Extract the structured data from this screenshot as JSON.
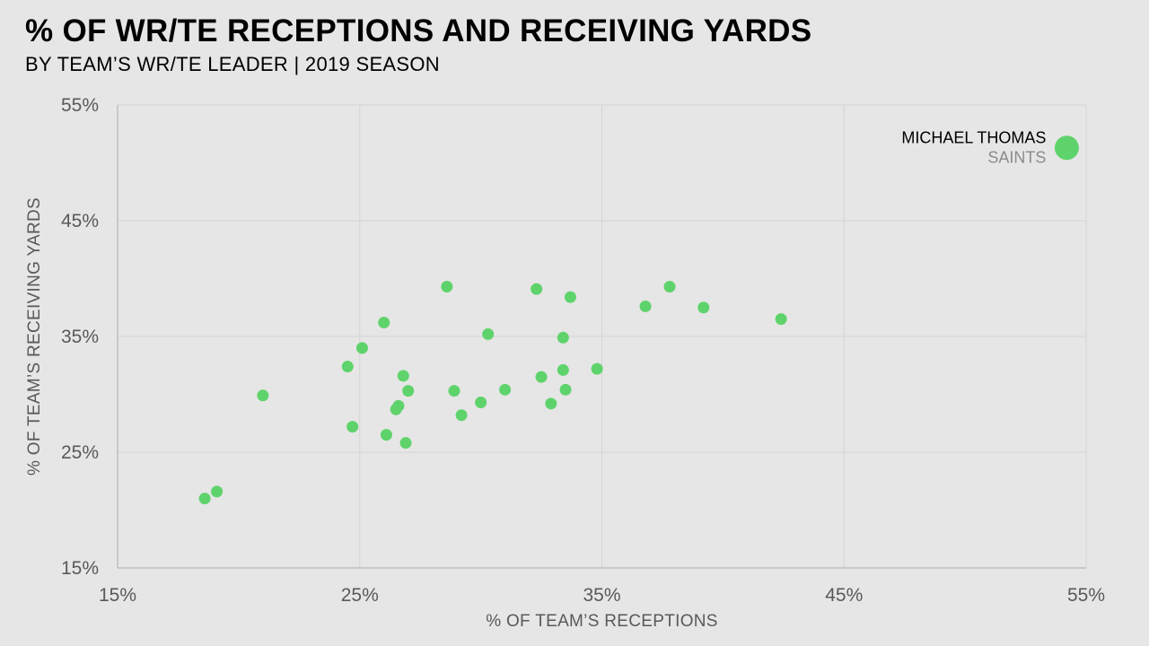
{
  "title": "% OF WR/TE RECEPTIONS AND RECEIVING YARDS",
  "subtitle": "BY TEAM’S WR/TE LEADER | 2019 SEASON",
  "colors": {
    "point": "#5fd36b",
    "grid": "#d4d4d4",
    "axis": "#bfbfbf",
    "background": "#e6e6e6"
  },
  "chart_data": {
    "type": "scatter",
    "xlabel": "% OF TEAM’S RECEPTIONS",
    "ylabel": "% OF TEAM’S RECEIVING YARDS",
    "xlim": [
      15,
      55
    ],
    "ylim": [
      15,
      55
    ],
    "x_ticks": [
      15,
      25,
      35,
      45,
      55
    ],
    "y_ticks": [
      15,
      25,
      35,
      45,
      55
    ],
    "x_tick_labels": [
      "15%",
      "25%",
      "35%",
      "45%",
      "55%"
    ],
    "y_tick_labels": [
      "15%",
      "25%",
      "35%",
      "45%",
      "55%"
    ],
    "grid": true,
    "points": [
      {
        "x": 18.6,
        "y": 21.0
      },
      {
        "x": 19.1,
        "y": 21.6
      },
      {
        "x": 21.0,
        "y": 29.9
      },
      {
        "x": 24.5,
        "y": 32.4
      },
      {
        "x": 24.7,
        "y": 27.2
      },
      {
        "x": 25.1,
        "y": 34.0
      },
      {
        "x": 26.0,
        "y": 36.2
      },
      {
        "x": 26.1,
        "y": 26.5
      },
      {
        "x": 26.5,
        "y": 28.7
      },
      {
        "x": 26.6,
        "y": 29.0
      },
      {
        "x": 26.8,
        "y": 31.6
      },
      {
        "x": 27.0,
        "y": 30.3
      },
      {
        "x": 26.9,
        "y": 25.8
      },
      {
        "x": 28.6,
        "y": 39.3
      },
      {
        "x": 28.9,
        "y": 30.3
      },
      {
        "x": 29.2,
        "y": 28.2
      },
      {
        "x": 30.0,
        "y": 29.3
      },
      {
        "x": 30.3,
        "y": 35.2
      },
      {
        "x": 31.0,
        "y": 30.4
      },
      {
        "x": 32.3,
        "y": 39.1
      },
      {
        "x": 32.5,
        "y": 31.5
      },
      {
        "x": 32.9,
        "y": 29.2
      },
      {
        "x": 33.4,
        "y": 34.9
      },
      {
        "x": 33.4,
        "y": 32.1
      },
      {
        "x": 33.5,
        "y": 30.4
      },
      {
        "x": 33.7,
        "y": 38.4
      },
      {
        "x": 34.8,
        "y": 32.2
      },
      {
        "x": 36.8,
        "y": 37.6
      },
      {
        "x": 37.8,
        "y": 39.3
      },
      {
        "x": 39.2,
        "y": 37.5
      },
      {
        "x": 42.4,
        "y": 36.5
      }
    ],
    "highlight": {
      "x": 54.2,
      "y": 51.3,
      "name": "MICHAEL THOMAS",
      "team": "SAINTS"
    }
  }
}
